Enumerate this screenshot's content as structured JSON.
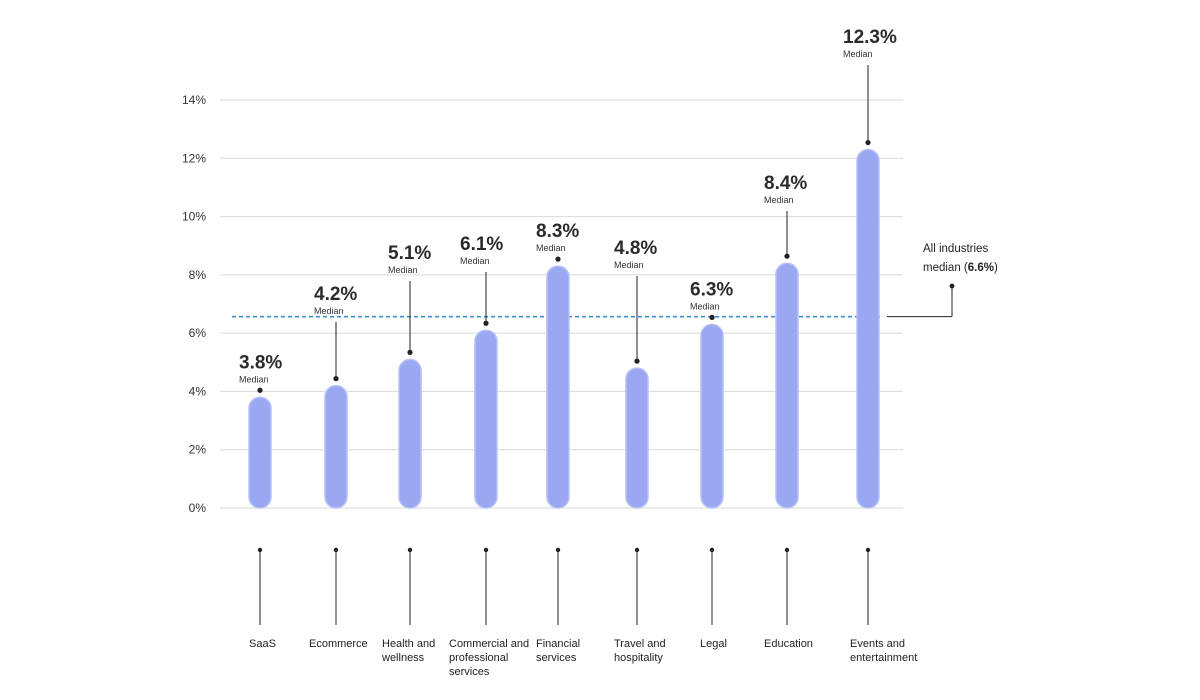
{
  "chart_data": {
    "type": "bar",
    "categories": [
      "SaaS",
      "Ecommerce",
      "Health and wellness",
      "Commercial and professional services",
      "Financial services",
      "Travel and hospitality",
      "Legal",
      "Education",
      "Events and entertainment"
    ],
    "category_lines": [
      [
        "SaaS"
      ],
      [
        "Ecommerce"
      ],
      [
        "Health and",
        "wellness"
      ],
      [
        "Commercial and",
        "professional",
        "services"
      ],
      [
        "Financial",
        "services"
      ],
      [
        "Travel and",
        "hospitality"
      ],
      [
        "Legal"
      ],
      [
        "Education"
      ],
      [
        "Events and",
        "entertainment"
      ]
    ],
    "values": [
      3.8,
      4.2,
      5.1,
      6.1,
      8.3,
      4.8,
      6.3,
      8.4,
      12.3
    ],
    "value_labels": [
      "3.8%",
      "4.2%",
      "5.1%",
      "6.1%",
      "8.3%",
      "4.8%",
      "6.3%",
      "8.4%",
      "12.3%"
    ],
    "value_sublabel": "Median",
    "ylim": [
      0,
      14
    ],
    "yticks": [
      0,
      2,
      4,
      6,
      8,
      10,
      12,
      14
    ],
    "ytick_labels": [
      "0%",
      "2%",
      "4%",
      "6%",
      "8%",
      "10%",
      "12%",
      "14%"
    ],
    "grid": true,
    "reference_line": {
      "value": 6.6,
      "label_line1": "All industries",
      "label_line2_prefix": "median (",
      "label_line2_value": "6.6%",
      "label_line2_suffix": ")"
    },
    "colors": {
      "bar": "#9aa8f2",
      "bar_edge": "#b7c1f6",
      "grid": "#d9d9d9",
      "reference": "#3b8fd9",
      "leader": "#222222"
    }
  }
}
